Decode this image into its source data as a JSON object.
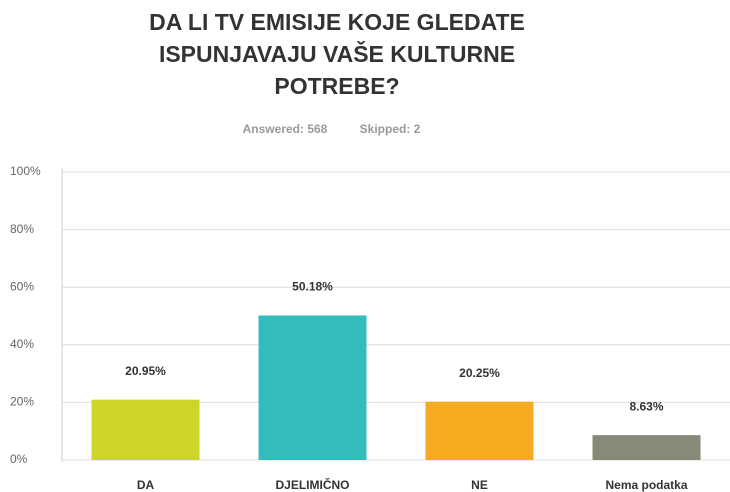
{
  "chart_data": {
    "type": "bar",
    "title": "DA LI TV EMISIJE KOJE GLEDATE ISPUNJAVAJU VAŠE KULTURNE POTREBE?",
    "annotations": [
      "Answered: 568",
      "Skipped: 2"
    ],
    "categories": [
      "DA",
      "DJELIMIČNO",
      "NE",
      "Nema podatka"
    ],
    "values": [
      20.95,
      50.18,
      20.25,
      8.63
    ],
    "value_labels": [
      "20.95%",
      "50.18%",
      "20.25%",
      "8.63%"
    ],
    "colors": [
      "#cdd42a",
      "#33bcbc",
      "#f6aa1f",
      "#878a78"
    ],
    "ylim": [
      0,
      100
    ],
    "yticks": [
      {
        "value": 0,
        "label": "0%"
      },
      {
        "value": 20,
        "label": "20%"
      },
      {
        "value": 40,
        "label": "40%"
      },
      {
        "value": 60,
        "label": "60%"
      },
      {
        "value": 80,
        "label": "80%"
      },
      {
        "value": 100,
        "label": "100%"
      }
    ],
    "grid": true
  }
}
